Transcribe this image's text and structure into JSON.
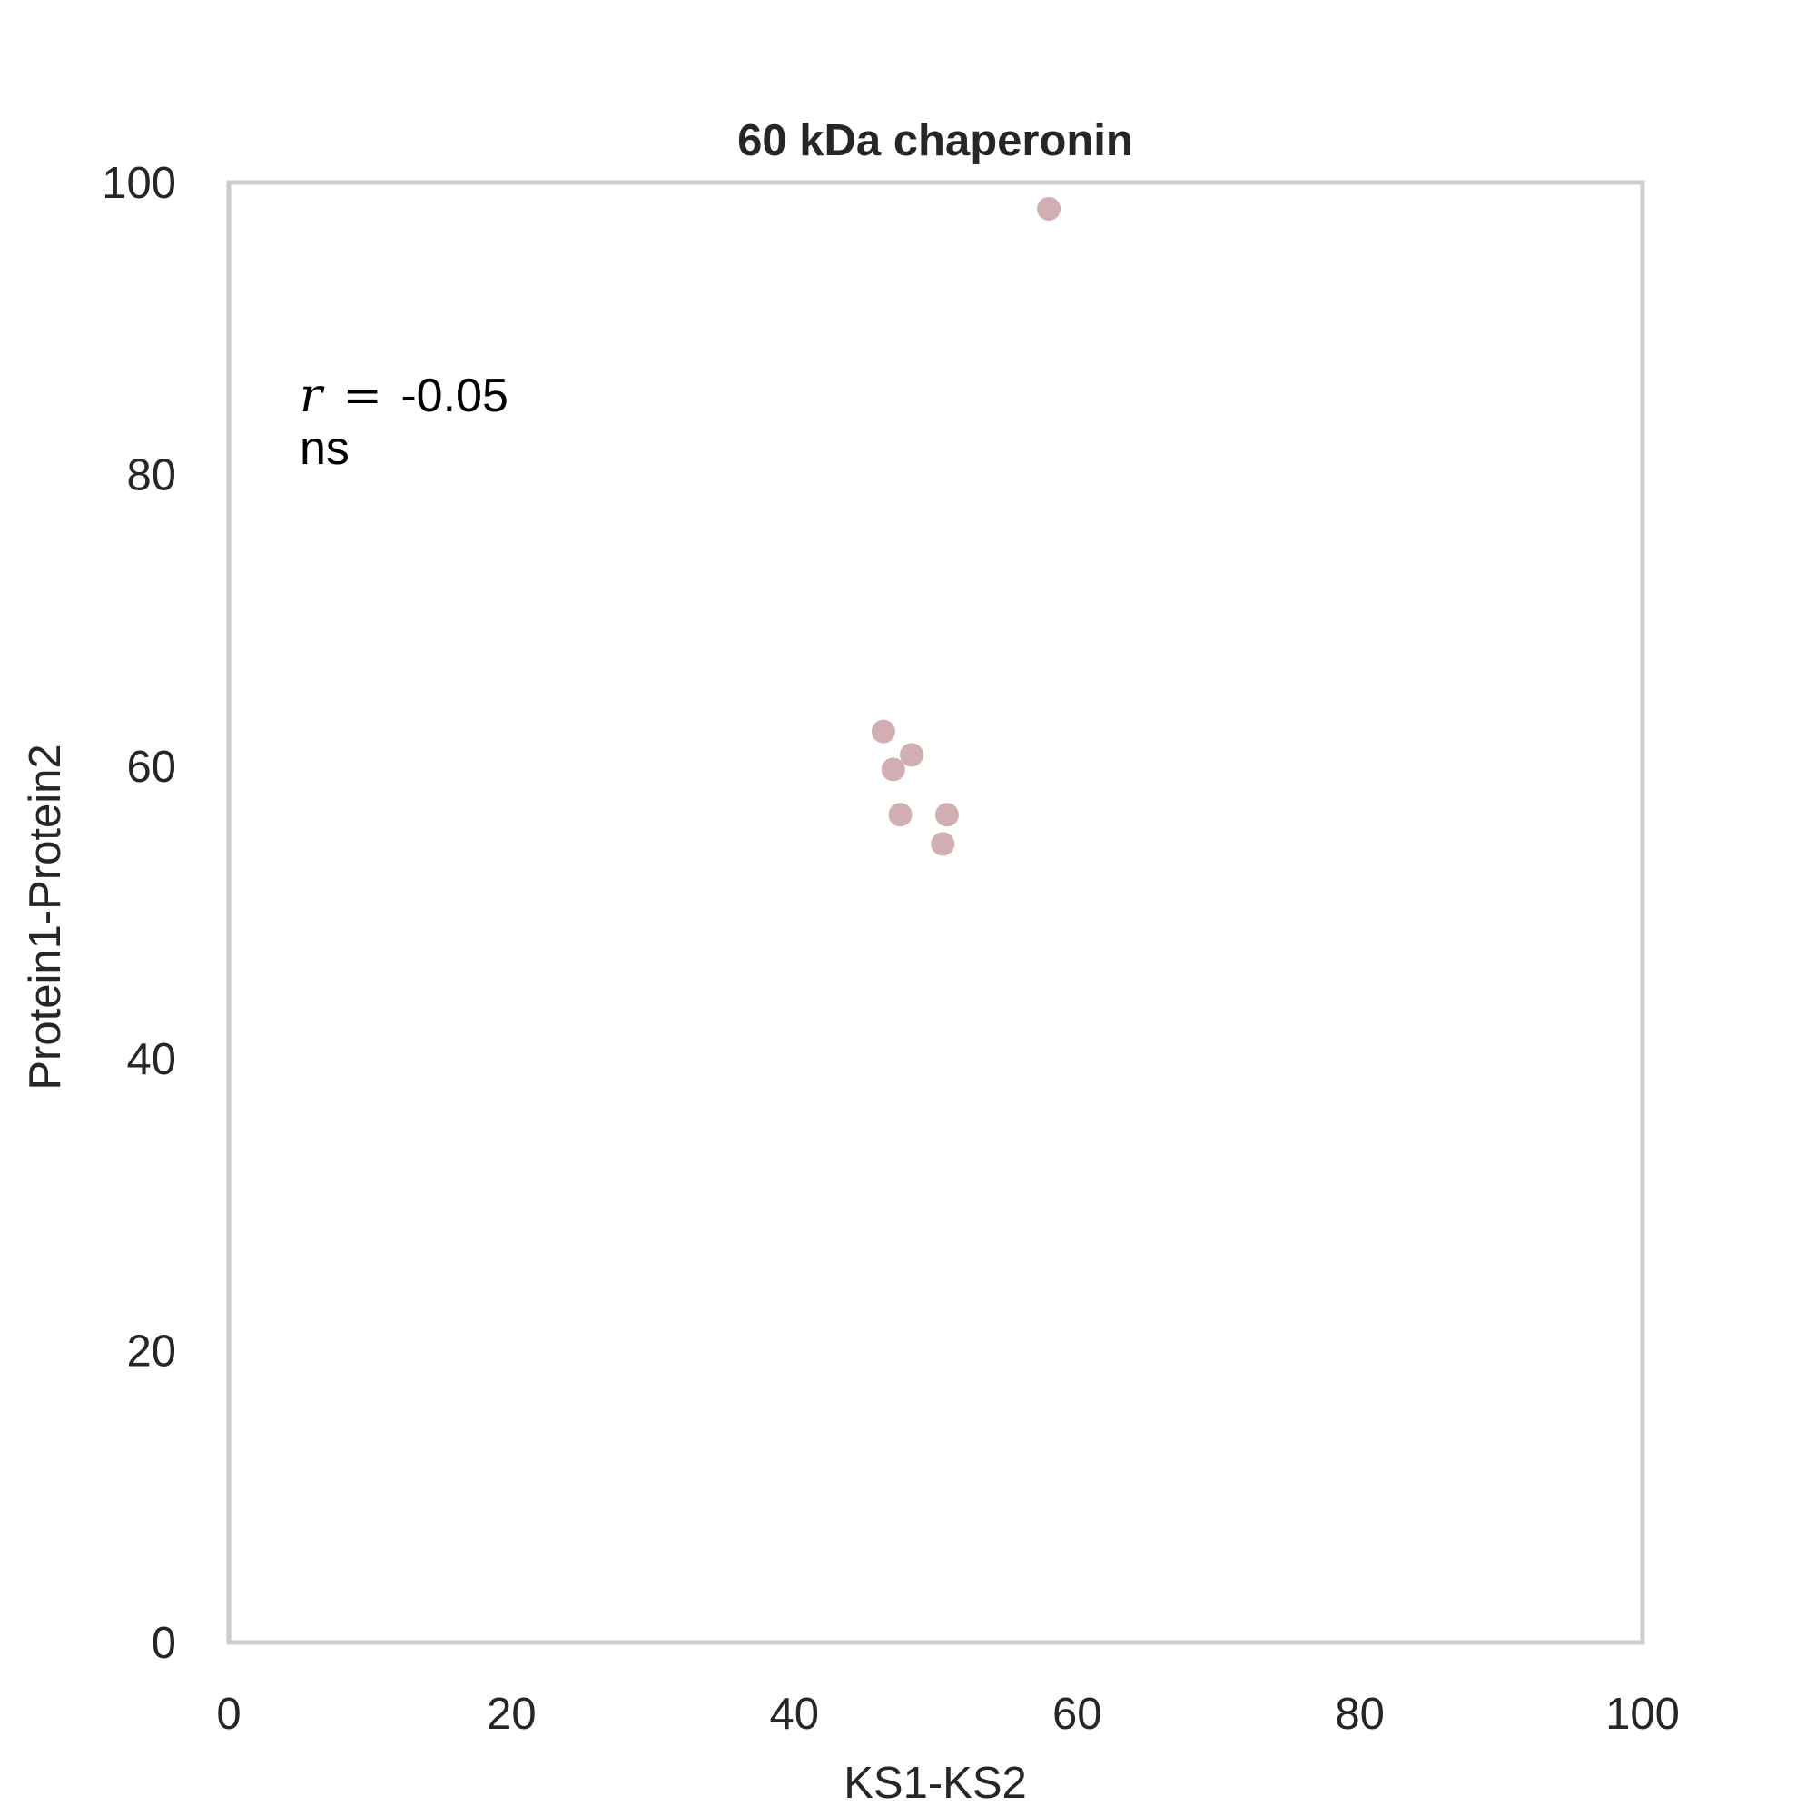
{
  "chart_data": {
    "type": "scatter",
    "title": "60 kDa chaperonin",
    "xlabel": "KS1-KS2",
    "ylabel": "Protein1-Protein2",
    "xlim": [
      0,
      100
    ],
    "ylim": [
      0,
      100
    ],
    "xticks": [
      "0",
      "20",
      "40",
      "60",
      "80",
      "100"
    ],
    "yticks": [
      "0",
      "20",
      "40",
      "60",
      "80",
      "100"
    ],
    "grid": false,
    "marker_color": "#c9a0a4",
    "frame_color": "#cccccc",
    "points": [
      {
        "x": 58.0,
        "y": 98.2
      },
      {
        "x": 46.3,
        "y": 62.4
      },
      {
        "x": 48.3,
        "y": 60.8
      },
      {
        "x": 47.0,
        "y": 59.8
      },
      {
        "x": 47.5,
        "y": 56.7
      },
      {
        "x": 50.8,
        "y": 56.7
      },
      {
        "x": 50.5,
        "y": 54.7
      }
    ],
    "annotation": {
      "r_symbol": "r",
      "equals": "=",
      "r_value": "-0.05",
      "significance": "ns"
    }
  }
}
